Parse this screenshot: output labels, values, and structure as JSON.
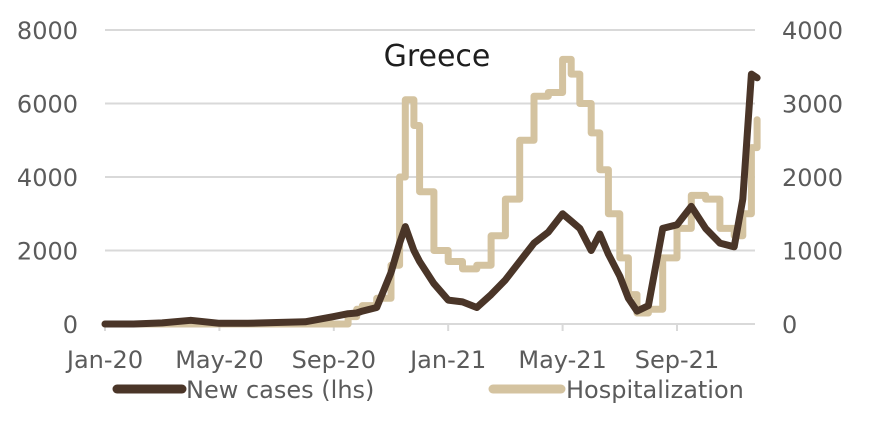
{
  "chart_data": {
    "type": "line",
    "title": "Greece",
    "xlabel": "",
    "ylabel_left": "New cases (lhs)",
    "ylabel_right": "Hospitalization",
    "x_tick_labels": [
      "Jan-20",
      "May-20",
      "Sep-20",
      "Jan-21",
      "May-21",
      "Sep-21"
    ],
    "y_left_ticks": [
      0,
      2000,
      4000,
      6000,
      8000
    ],
    "y_right_ticks": [
      0,
      1000,
      2000,
      3000,
      4000
    ],
    "ylim_left": [
      0,
      8000
    ],
    "ylim_right": [
      0,
      4000
    ],
    "grid": true,
    "legend_position": "bottom",
    "x_months_from_jan20": [
      0,
      1,
      2,
      3,
      3.5,
      4,
      5,
      6,
      7,
      8,
      8.5,
      8.8,
      9,
      9.5,
      10,
      10.3,
      10.5,
      10.8,
      11,
      11.5,
      12,
      12.5,
      13,
      13.5,
      14,
      14.5,
      15,
      15.5,
      16,
      16.3,
      16.6,
      17,
      17.3,
      17.6,
      18,
      18.3,
      18.6,
      19,
      19.5,
      20,
      20.5,
      21,
      21.5,
      22,
      22.3,
      22.6,
      22.8
    ],
    "series": [
      {
        "name": "New cases (lhs)",
        "axis": "left",
        "color": "#4a3528",
        "values": [
          0,
          0,
          30,
          100,
          60,
          20,
          20,
          40,
          60,
          200,
          280,
          300,
          350,
          450,
          1400,
          2200,
          2650,
          2000,
          1700,
          1100,
          650,
          600,
          450,
          800,
          1200,
          1700,
          2200,
          2500,
          3000,
          2800,
          2600,
          2000,
          2450,
          1900,
          1300,
          700,
          350,
          500,
          2600,
          2700,
          3200,
          2600,
          2200,
          2100,
          3400,
          6800,
          6700
        ]
      },
      {
        "name": "Hospitalization",
        "axis": "right",
        "color": "#d4c3a0",
        "values": [
          0,
          0,
          0,
          0,
          0,
          0,
          0,
          0,
          0,
          0,
          100,
          200,
          250,
          350,
          800,
          2000,
          3050,
          2700,
          1800,
          1000,
          850,
          750,
          800,
          1200,
          1700,
          2500,
          3100,
          3150,
          3600,
          3400,
          3000,
          2600,
          2100,
          1500,
          900,
          400,
          150,
          200,
          900,
          1300,
          1750,
          1700,
          1300,
          1200,
          1500,
          2400,
          2780
        ]
      }
    ]
  },
  "title": "Greece",
  "legend": [
    {
      "label": "New cases (lhs)",
      "color": "#4a3528"
    },
    {
      "label": "Hospitalization",
      "color": "#d4c3a0"
    }
  ],
  "axes": {
    "left_ticks": [
      "0",
      "2000",
      "4000",
      "6000",
      "8000"
    ],
    "right_ticks": [
      "0",
      "1000",
      "2000",
      "3000",
      "4000"
    ],
    "x_ticks": [
      "Jan-20",
      "May-20",
      "Sep-20",
      "Jan-21",
      "May-21",
      "Sep-21"
    ]
  },
  "colors": {
    "gridline": "#d9d9d9",
    "tick_text": "#5b5b5b"
  }
}
